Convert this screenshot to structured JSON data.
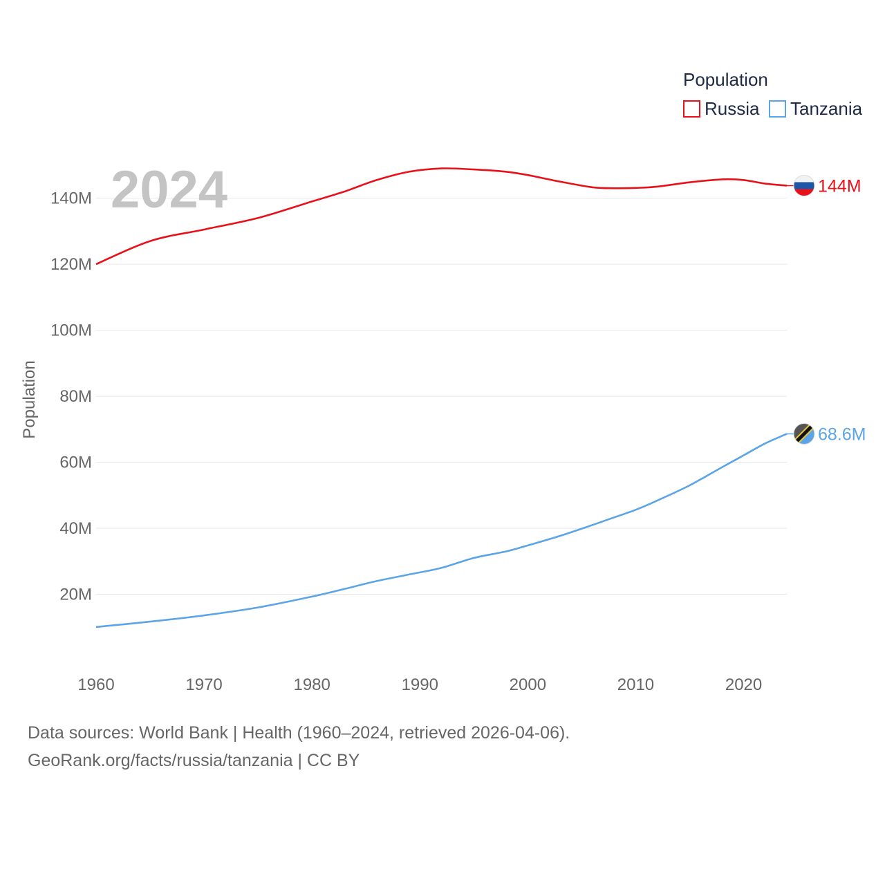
{
  "chart_data": {
    "type": "line",
    "year_label": "2024",
    "ylabel": "Population",
    "xlabel": "",
    "x": [
      1960,
      1965,
      1970,
      1975,
      1980,
      1983,
      1986,
      1989,
      1992,
      1995,
      1998,
      2000,
      2003,
      2006,
      2008,
      2010,
      2012,
      2015,
      2018,
      2020,
      2022,
      2024
    ],
    "xlim": [
      1960,
      2024
    ],
    "ylim": [
      0,
      155000000
    ],
    "xticks": [
      1960,
      1970,
      1980,
      1990,
      2000,
      2010,
      2020
    ],
    "xtick_labels": [
      "1960",
      "1970",
      "1980",
      "1990",
      "2000",
      "2010",
      "2020"
    ],
    "yticks": [
      20000000,
      40000000,
      60000000,
      80000000,
      100000000,
      120000000,
      140000000
    ],
    "ytick_labels": [
      "20M",
      "40M",
      "60M",
      "80M",
      "100M",
      "120M",
      "140M"
    ],
    "legend": {
      "title": "Population",
      "position": "top-right"
    },
    "series": [
      {
        "name": "Russia",
        "color": "#e8111a",
        "end_label": "144M",
        "flag": "russia-flag",
        "values": [
          120000000,
          127000000,
          130500000,
          134000000,
          139000000,
          142000000,
          145500000,
          148000000,
          149000000,
          148700000,
          148000000,
          147000000,
          145000000,
          143300000,
          143000000,
          143100000,
          143500000,
          144800000,
          145700000,
          145500000,
          144400000,
          143800000
        ]
      },
      {
        "name": "Tanzania",
        "color": "#5ba4e6",
        "end_label": "68.6M",
        "flag": "tanzania-flag",
        "values": [
          10100000,
          11700000,
          13600000,
          16000000,
          19300000,
          21600000,
          24000000,
          26000000,
          28000000,
          31000000,
          33000000,
          34800000,
          37700000,
          41000000,
          43300000,
          45600000,
          48400000,
          53000000,
          58500000,
          62100000,
          65700000,
          68600000
        ]
      }
    ]
  },
  "footer": {
    "source": "Data sources: World Bank | Health (1960–2024, retrieved 2026-04-06).",
    "credit": "GeoRank.org/facts/russia/tanzania | CC BY"
  }
}
